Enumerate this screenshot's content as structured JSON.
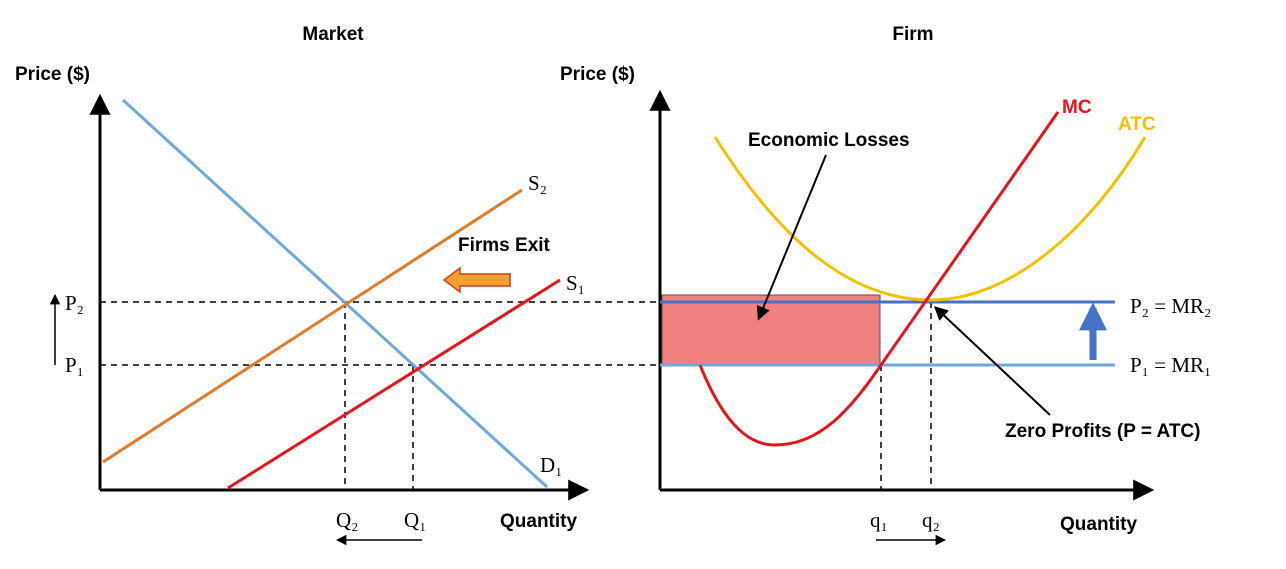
{
  "panels": [
    {
      "title": "Market",
      "y_axis_label": "Price ($)",
      "x_axis_label": "Quantity",
      "curves": [
        {
          "label": "S₂"
        },
        {
          "label": "S₁"
        },
        {
          "label": "D₁"
        }
      ],
      "price_labels": [
        "P₂",
        "P₁"
      ],
      "quantity_labels": [
        "Q₂",
        "Q₁"
      ],
      "annotation": "Firms Exit"
    },
    {
      "title": "Firm",
      "y_axis_label": "Price ($)",
      "x_axis_label": "Quantity",
      "curves": [
        {
          "label": "MC"
        },
        {
          "label": "ATC"
        }
      ],
      "price_lines": [
        "P₂ = MR₂",
        "P₁ = MR₁"
      ],
      "quantity_labels": [
        "q₁",
        "q₂"
      ],
      "annotations": [
        "Economic Losses",
        "Zero Profits (P = ATC)"
      ]
    }
  ]
}
